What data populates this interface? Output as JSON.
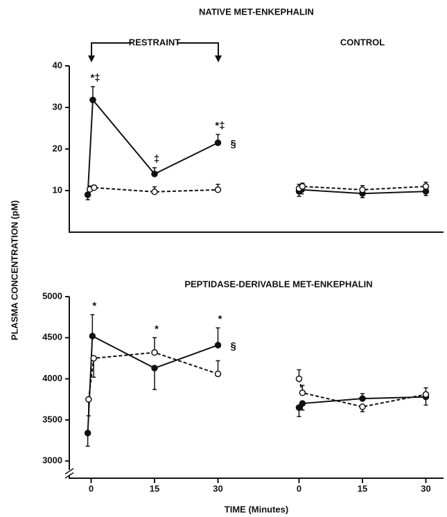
{
  "chart_data": [
    {
      "type": "line",
      "title": "NATIVE MET-ENKEPHALIN",
      "ylabel": "PLASMA CONCENTRATION (pM)",
      "ylim": [
        0,
        40
      ],
      "yticks": [
        10,
        20,
        30,
        40
      ],
      "groups": [
        {
          "label": "RESTRAINT",
          "xlim": [
            -5,
            35
          ],
          "end_note": "§",
          "annotations": [
            {
              "x": 0.5,
              "text": "*‡"
            },
            {
              "x": 15,
              "text": "‡"
            },
            {
              "x": 30,
              "text": "*‡"
            }
          ],
          "series": [
            {
              "style": "solid",
              "marker": "filled",
              "color": "#111",
              "x": [
                -0.8,
                0.4,
                15,
                30
              ],
              "values": [
                9,
                31.8,
                14,
                21.5
              ],
              "errors": [
                1.2,
                3.2,
                1.5,
                2
              ],
              "error_side": [
                "down",
                "up",
                "up",
                "up"
              ]
            },
            {
              "style": "dashed",
              "marker": "open",
              "color": "#111",
              "x": [
                -0.3,
                0.7,
                15,
                30
              ],
              "values": [
                10.3,
                10.7,
                9.7,
                10.2
              ],
              "errors": [
                0.8,
                0.6,
                1.2,
                1.3
              ],
              "error_side": [
                "up",
                "up",
                "up",
                "up"
              ]
            }
          ]
        },
        {
          "label": "CONTROL",
          "xlim": [
            -5,
            35
          ],
          "series": [
            {
              "style": "solid",
              "marker": "filled",
              "color": "#111",
              "x": [
                0,
                0.6,
                15,
                30
              ],
              "values": [
                9.8,
                10.2,
                9.3,
                9.8
              ],
              "errors": [
                1.2,
                1,
                1,
                1
              ],
              "error_side": [
                "down",
                "down",
                "down",
                "down"
              ]
            },
            {
              "style": "dashed",
              "marker": "open",
              "color": "#111",
              "x": [
                0,
                0.8,
                15,
                30
              ],
              "values": [
                10.5,
                11,
                10.2,
                11
              ],
              "errors": [
                1,
                0.8,
                1,
                1
              ],
              "error_side": [
                "up",
                "up",
                "up",
                "up"
              ]
            }
          ]
        }
      ]
    },
    {
      "type": "line",
      "title": "PEPTIDASE-DERIVABLE MET-ENKEPHALIN",
      "xlabel": "TIME (Minutes)",
      "ylim": [
        2850,
        5000
      ],
      "yticks": [
        3000,
        3500,
        4000,
        4500,
        5000
      ],
      "groups": [
        {
          "xlim": [
            -5,
            35
          ],
          "xticks": [
            0,
            15,
            30
          ],
          "end_note": "§",
          "annotations": [
            {
              "x": 0.3,
              "text": "*"
            },
            {
              "x": 15,
              "text": "*"
            },
            {
              "x": 30,
              "text": "*"
            }
          ],
          "series": [
            {
              "style": "solid",
              "marker": "filled",
              "color": "#111",
              "x": [
                -0.8,
                0.3,
                15,
                30
              ],
              "values": [
                3340,
                4520,
                4130,
                4410
              ],
              "errors": [
                160,
                260,
                260,
                210
              ],
              "error_side": [
                "down",
                "up",
                "down",
                "up"
              ]
            },
            {
              "style": "dashed",
              "marker": "open",
              "color": "#111",
              "x": [
                -0.6,
                0.6,
                15,
                30
              ],
              "values": [
                3750,
                4250,
                4320,
                4060
              ],
              "errors": [
                200,
                230,
                180,
                160
              ],
              "error_side": [
                "down",
                "down",
                "up",
                "up"
              ]
            }
          ]
        },
        {
          "xlim": [
            -5,
            35
          ],
          "xticks": [
            0,
            15,
            30
          ],
          "series": [
            {
              "style": "solid",
              "marker": "filled",
              "color": "#111",
              "x": [
                0,
                0.8,
                15,
                30
              ],
              "values": [
                3650,
                3700,
                3760,
                3780
              ],
              "errors": [
                110,
                80,
                60,
                100
              ],
              "error_side": [
                "down",
                "down",
                "up",
                "down"
              ]
            },
            {
              "style": "dashed",
              "marker": "open",
              "color": "#111",
              "x": [
                0,
                0.8,
                15,
                30
              ],
              "values": [
                4000,
                3830,
                3660,
                3810
              ],
              "errors": [
                110,
                90,
                60,
                80
              ],
              "error_side": [
                "up",
                "up",
                "down",
                "up"
              ]
            }
          ]
        }
      ]
    }
  ]
}
